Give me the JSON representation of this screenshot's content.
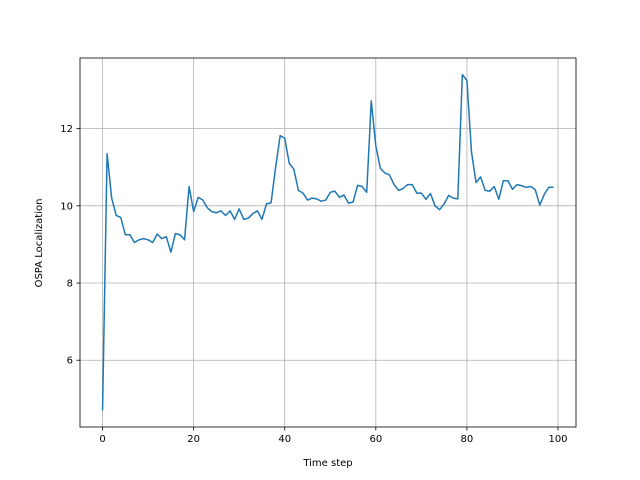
{
  "chart_data": {
    "type": "line",
    "xlabel": "Time step",
    "ylabel": "OSPA Localization",
    "x": [
      0,
      1,
      2,
      3,
      4,
      5,
      6,
      7,
      8,
      9,
      10,
      11,
      12,
      13,
      14,
      15,
      16,
      17,
      18,
      19,
      20,
      21,
      22,
      23,
      24,
      25,
      26,
      27,
      28,
      29,
      30,
      31,
      32,
      33,
      34,
      35,
      36,
      37,
      38,
      39,
      40,
      41,
      42,
      43,
      44,
      45,
      46,
      47,
      48,
      49,
      50,
      51,
      52,
      53,
      54,
      55,
      56,
      57,
      58,
      59,
      60,
      61,
      62,
      63,
      64,
      65,
      66,
      67,
      68,
      69,
      70,
      71,
      72,
      73,
      74,
      75,
      76,
      77,
      78,
      79,
      80,
      81,
      82,
      83,
      84,
      85,
      86,
      87,
      88,
      89,
      90,
      91,
      92,
      93,
      94,
      95,
      96,
      97,
      98,
      99
    ],
    "series": [
      {
        "color": "#1f77b4",
        "values": [
          4.7,
          11.35,
          10.2,
          9.75,
          9.7,
          9.25,
          9.25,
          9.05,
          9.12,
          9.15,
          9.12,
          9.05,
          9.27,
          9.15,
          9.2,
          8.8,
          9.28,
          9.25,
          9.12,
          10.5,
          9.85,
          10.22,
          10.15,
          9.95,
          9.85,
          9.82,
          9.87,
          9.75,
          9.87,
          9.65,
          9.92,
          9.65,
          9.68,
          9.8,
          9.87,
          9.65,
          10.05,
          10.08,
          11.0,
          11.82,
          11.75,
          11.1,
          10.95,
          10.4,
          10.33,
          10.15,
          10.2,
          10.18,
          10.12,
          10.15,
          10.35,
          10.38,
          10.22,
          10.28,
          10.07,
          10.1,
          10.53,
          10.5,
          10.35,
          12.72,
          11.55,
          10.97,
          10.85,
          10.8,
          10.55,
          10.4,
          10.45,
          10.55,
          10.55,
          10.33,
          10.33,
          10.17,
          10.32,
          10.0,
          9.9,
          10.05,
          10.27,
          10.2,
          10.18,
          13.4,
          13.25,
          11.4,
          10.6,
          10.75,
          10.4,
          10.38,
          10.5,
          10.17,
          10.65,
          10.65,
          10.43,
          10.55,
          10.52,
          10.48,
          10.5,
          10.42,
          10.02,
          10.3,
          10.48,
          10.48
        ]
      }
    ],
    "xlim": [
      -4.95,
      103.95
    ],
    "ylim": [
      4.27,
      13.83
    ],
    "xticks": [
      0,
      20,
      40,
      60,
      80,
      100
    ],
    "yticks": [
      6,
      8,
      10,
      12
    ],
    "grid": true
  }
}
